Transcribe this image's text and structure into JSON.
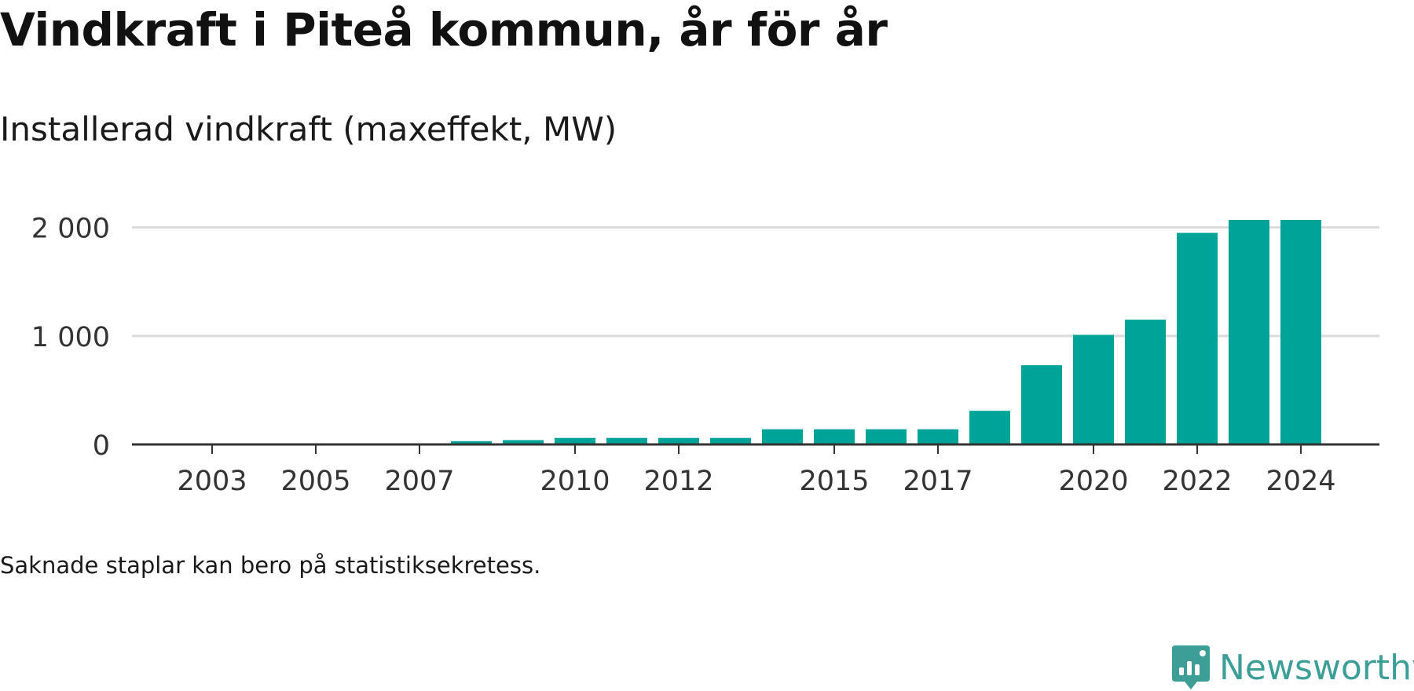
{
  "title": "Vindkraft i Piteå kommun, år för år",
  "subtitle": "Installerad vindkraft (maxeffekt, MW)",
  "footnote": "Saknade staplar kan bero på statistiksekretess.",
  "brand": {
    "name": "Newsworthy",
    "icon": "newsworthy-logo-icon",
    "color": "#3d9e97"
  },
  "colors": {
    "bar": "#00a398",
    "grid": "#dcdcdc",
    "axis": "#333333"
  },
  "chart_data": {
    "type": "bar",
    "categories": [
      "2002",
      "2003",
      "2004",
      "2005",
      "2006",
      "2007",
      "2008",
      "2009",
      "2010",
      "2011",
      "2012",
      "2013",
      "2014",
      "2015",
      "2016",
      "2017",
      "2018",
      "2019",
      "2020",
      "2021",
      "2022",
      "2023",
      "2024"
    ],
    "values": [
      0,
      0,
      0,
      0,
      0,
      0,
      30,
      40,
      60,
      60,
      60,
      60,
      140,
      140,
      140,
      140,
      310,
      730,
      1010,
      1150,
      1950,
      2070,
      2070
    ],
    "x_tick_labels": [
      "2003",
      "2005",
      "2007",
      "2010",
      "2012",
      "2015",
      "2017",
      "2020",
      "2022",
      "2024"
    ],
    "y_ticks": [
      0,
      1000,
      2000
    ],
    "y_tick_labels": [
      "0",
      "1 000",
      "2 000"
    ],
    "ylim": [
      0,
      2070
    ],
    "grid": true,
    "legend": "none"
  }
}
